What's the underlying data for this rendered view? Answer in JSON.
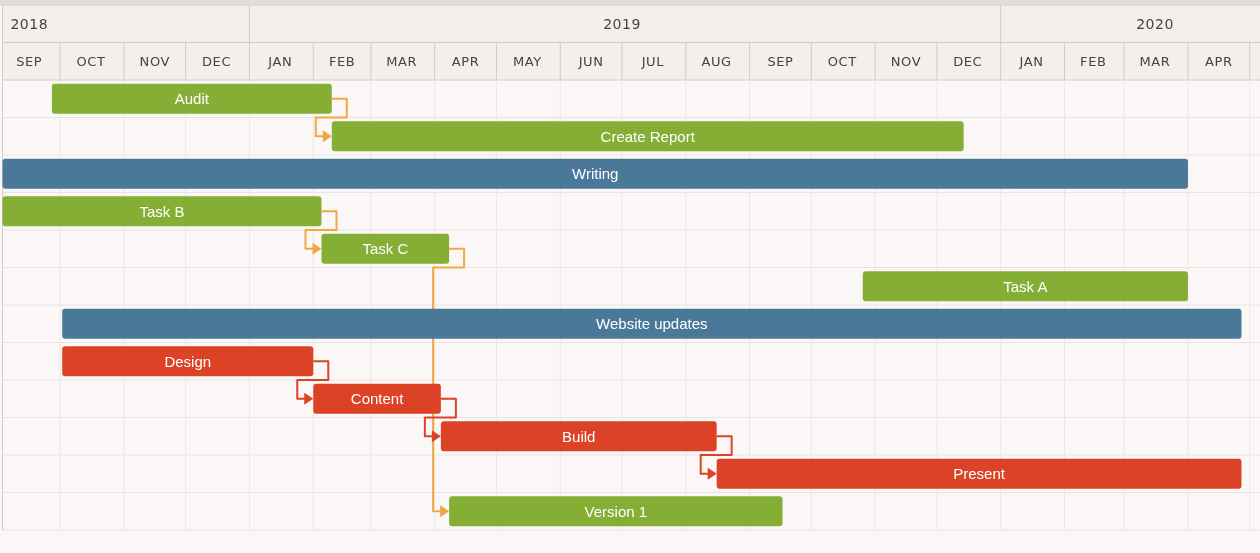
{
  "chart_data": {
    "type": "bar",
    "orientation": "horizontal",
    "categories": [
      "Audit",
      "Create Report",
      "Writing",
      "Task B",
      "Task C",
      "Task A",
      "Website updates",
      "Design",
      "Content",
      "Build",
      "Present",
      "Version 1"
    ],
    "base": [
      17801,
      17937,
      17777,
      17777,
      17932,
      18195,
      17806,
      17806,
      17928,
      17990,
      18124,
      17994
    ],
    "values": [
      136,
      307,
      576,
      155,
      62,
      158,
      573,
      122,
      62,
      134,
      255,
      162
    ],
    "colors": [
      "#84ae34",
      "#84ae34",
      "#4a7898",
      "#84ae34",
      "#84ae34",
      "#84ae34",
      "#4a7898",
      "#dc4326",
      "#dc4326",
      "#dc4326",
      "#dc4326",
      "#84ae34"
    ],
    "xlim": [
      "2018-09-03",
      "2020-05-06"
    ],
    "xticks": [
      {
        "value": "2018-09-16",
        "label": "SEP"
      },
      {
        "value": "2018-10-01",
        "label": null
      },
      {
        "value": "2018-10-16",
        "label": "OCT"
      },
      {
        "value": "2018-11-01",
        "label": null
      },
      {
        "value": "2018-11-16",
        "label": "NOV"
      },
      {
        "value": "2018-12-01",
        "label": null
      },
      {
        "value": "2018-12-16",
        "label": "DEC"
      },
      {
        "value": "2019-01-01",
        "label": null
      },
      {
        "value": "2019-01-16",
        "label": "JAN"
      },
      {
        "value": "2019-02-01",
        "label": null
      },
      {
        "value": "2019-02-15",
        "label": "FEB"
      },
      {
        "value": "2019-03-01",
        "label": null
      },
      {
        "value": "2019-03-16",
        "label": "MAR"
      },
      {
        "value": "2019-04-01",
        "label": null
      },
      {
        "value": "2019-04-16",
        "label": "APR"
      },
      {
        "value": "2019-05-01",
        "label": null
      },
      {
        "value": "2019-05-16",
        "label": "MAY"
      },
      {
        "value": "2019-06-01",
        "label": null
      },
      {
        "value": "2019-06-16",
        "label": "JUN"
      },
      {
        "value": "2019-07-01",
        "label": null
      },
      {
        "value": "2019-07-16",
        "label": "JUL"
      },
      {
        "value": "2019-08-01",
        "label": null
      },
      {
        "value": "2019-08-16",
        "label": "AUG"
      },
      {
        "value": "2019-09-01",
        "label": null
      },
      {
        "value": "2019-09-16",
        "label": "SEP"
      },
      {
        "value": "2019-10-01",
        "label": null
      },
      {
        "value": "2019-10-16",
        "label": "OCT"
      },
      {
        "value": "2019-11-01",
        "label": null
      },
      {
        "value": "2019-11-16",
        "label": "NOV"
      },
      {
        "value": "2019-12-01",
        "label": null
      },
      {
        "value": "2019-12-16",
        "label": "DEC"
      },
      {
        "value": "2020-01-01",
        "label": null
      },
      {
        "value": "2020-01-16",
        "label": "JAN"
      },
      {
        "value": "2020-02-01",
        "label": null
      },
      {
        "value": "2020-02-15",
        "label": "FEB"
      },
      {
        "value": "2020-03-01",
        "label": null
      },
      {
        "value": "2020-03-16",
        "label": "MAR"
      },
      {
        "value": "2020-04-01",
        "label": null
      },
      {
        "value": "2020-04-16",
        "label": "APR"
      },
      {
        "value": "2020-05-01",
        "label": null
      }
    ],
    "x2lim": [
      "2018-09-03",
      "2020-05-06"
    ],
    "x2ticks": [
      {
        "value": "2018-09-16",
        "label": "2018"
      },
      {
        "value": "2019-01-01",
        "label": null
      },
      {
        "value": "2019-07-01",
        "label": "2019"
      },
      {
        "value": "2020-01-01",
        "label": null
      },
      {
        "value": "2020-03-16",
        "label": "2020"
      }
    ],
    "grid": true
  }
}
